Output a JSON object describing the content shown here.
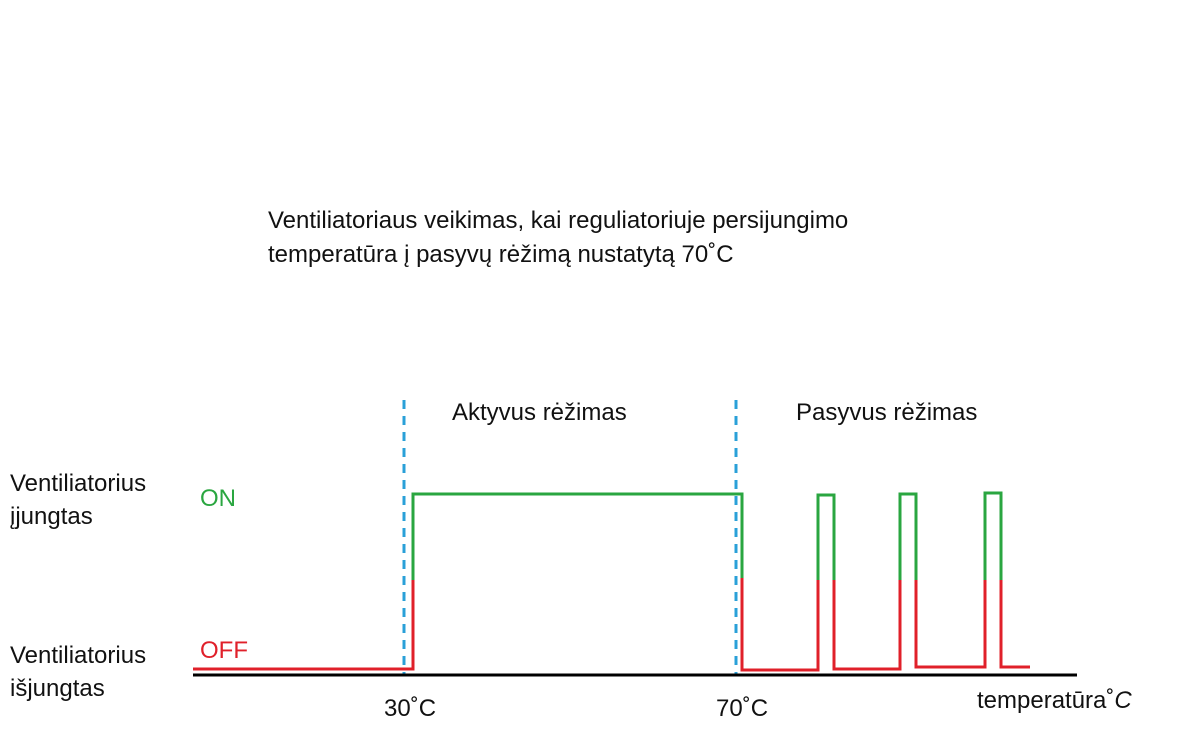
{
  "title": {
    "line1": "Ventiliatoriaus veikimas, kai reguliatoriuje persijungimo",
    "line2": "temperatūra į pasyvų rėžimą nustatytą 70˚C"
  },
  "modes": {
    "active": "Aktyvus rėžimas",
    "passive": "Pasyvus rėžimas"
  },
  "states": {
    "on_label": {
      "line1": "Ventiliatorius",
      "line2": "įjungtas"
    },
    "on": "ON",
    "off_label": {
      "line1": "Ventiliatorius",
      "line2": "išjungtas"
    },
    "off": "OFF"
  },
  "axis": {
    "t1": "30˚C",
    "t2": "70˚C",
    "label": "temperatūra˚",
    "unit": "C"
  }
}
